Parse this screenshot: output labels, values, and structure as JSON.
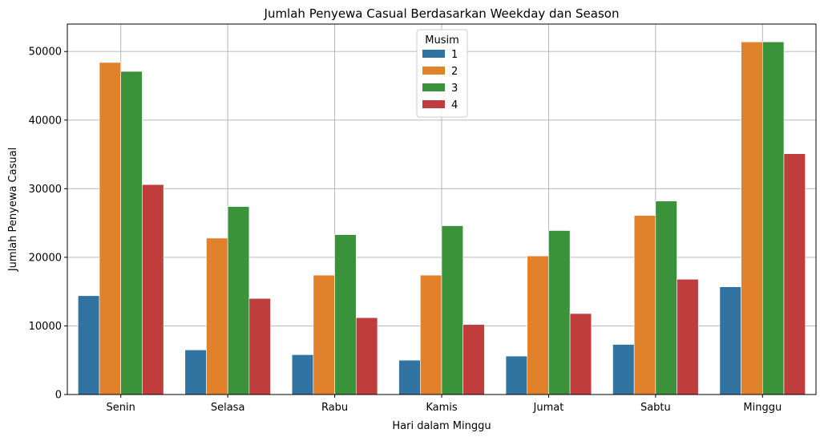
{
  "chart_data": {
    "type": "bar",
    "title": "Jumlah Penyewa Casual Berdasarkan Weekday dan Season",
    "xlabel": "Hari dalam Minggu",
    "ylabel": "Jumlah Penyewa Casual",
    "ylim": [
      0,
      54000
    ],
    "yticks": [
      0,
      10000,
      20000,
      30000,
      40000,
      50000
    ],
    "ytick_labels": [
      "0",
      "10000",
      "20000",
      "30000",
      "40000",
      "50000"
    ],
    "grid": true,
    "categories": [
      "Senin",
      "Selasa",
      "Rabu",
      "Kamis",
      "Jumat",
      "Sabtu",
      "Minggu"
    ],
    "legend": {
      "title": "Musim",
      "position": "top-center"
    },
    "series": [
      {
        "name": "1",
        "color": "#3274a1",
        "values": [
          14400,
          6500,
          5800,
          5000,
          5600,
          7300,
          15700
        ]
      },
      {
        "name": "2",
        "color": "#e1812c",
        "values": [
          48400,
          22800,
          17400,
          17400,
          20200,
          26100,
          51400
        ]
      },
      {
        "name": "3",
        "color": "#3a923a",
        "values": [
          47100,
          27400,
          23300,
          24600,
          23900,
          28200,
          51400
        ]
      },
      {
        "name": "4",
        "color": "#c03d3e",
        "values": [
          30600,
          14000,
          11200,
          10200,
          11800,
          16800,
          35100
        ]
      }
    ]
  }
}
